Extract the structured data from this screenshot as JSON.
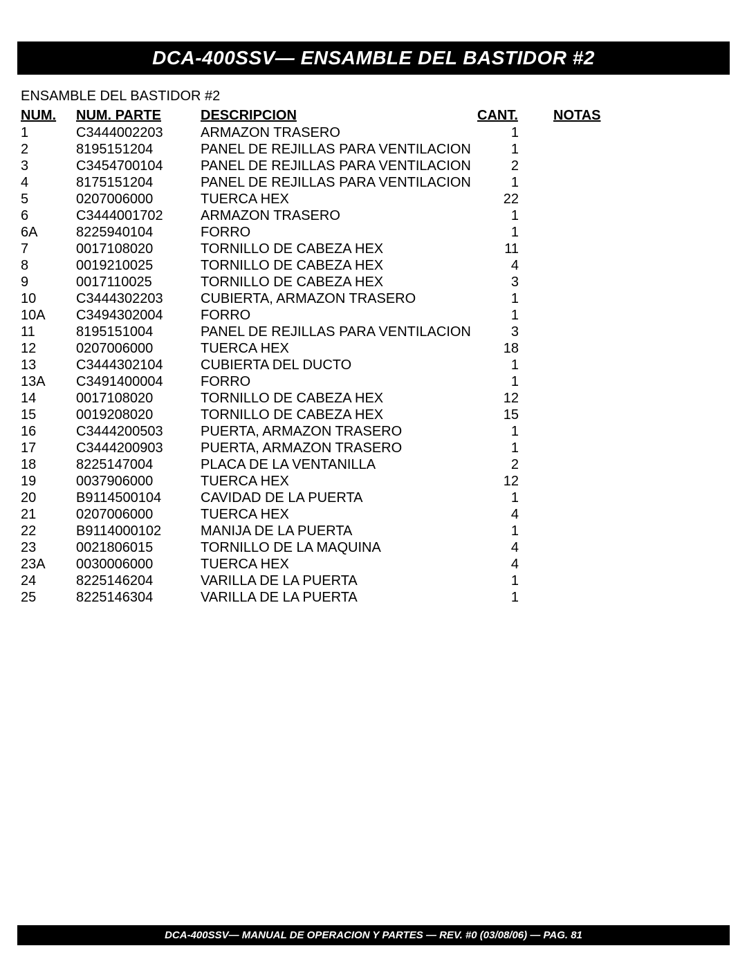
{
  "header": {
    "title": "DCA-400SSV— ENSAMBLE DEL BASTIDOR #2"
  },
  "subtitle": "ENSAMBLE DEL BASTIDOR  #2",
  "table": {
    "columns": {
      "num": "NUM.",
      "parte": "NUM. PARTE",
      "descripcion": "DESCRIPCION",
      "cant": "CANT.",
      "notas": "NOTAS"
    },
    "rows": [
      {
        "num": "1",
        "parte": "C3444002203",
        "desc": "ARMAZON TRASERO",
        "cant": "1",
        "notas": ""
      },
      {
        "num": "2",
        "parte": "8195151204",
        "desc": "PANEL DE REJILLAS PARA VENTILACION",
        "cant": "1",
        "notas": ""
      },
      {
        "num": "3",
        "parte": "C3454700104",
        "desc": "PANEL DE REJILLAS  PARA VENTILACION",
        "cant": "2",
        "notas": ""
      },
      {
        "num": "4",
        "parte": "8175151204",
        "desc": "PANEL DE REJILLAS  PARA VENTILACION",
        "cant": "1",
        "notas": ""
      },
      {
        "num": "5",
        "parte": "0207006000",
        "desc": "TUERCA HEX",
        "cant": "22",
        "notas": ""
      },
      {
        "num": "6",
        "parte": "C3444001702",
        "desc": "ARMAZON TRASERO",
        "cant": "1",
        "notas": ""
      },
      {
        "num": "6A",
        "parte": "8225940104",
        "desc": "FORRO",
        "cant": "1",
        "notas": ""
      },
      {
        "num": "7",
        "parte": "0017108020",
        "desc": "TORNILLO DE CABEZA HEX",
        "cant": "11",
        "notas": ""
      },
      {
        "num": "8",
        "parte": "0019210025",
        "desc": "TORNILLO DE CABEZA HEX",
        "cant": "4",
        "notas": ""
      },
      {
        "num": "9",
        "parte": "0017110025",
        "desc": "TORNILLO DE CABEZA HEX",
        "cant": "3",
        "notas": ""
      },
      {
        "num": "10",
        "parte": "C3444302203",
        "desc": "CUBIERTA, ARMAZON TRASERO",
        "cant": "1",
        "notas": ""
      },
      {
        "num": "10A",
        "parte": "C3494302004",
        "desc": "FORRO",
        "cant": "1",
        "notas": ""
      },
      {
        "num": "11",
        "parte": "8195151004",
        "desc": "PANEL DE REJILLAS  PARA VENTILACION",
        "cant": "3",
        "notas": ""
      },
      {
        "num": "12",
        "parte": "0207006000",
        "desc": "TUERCA HEX",
        "cant": "18",
        "notas": ""
      },
      {
        "num": "13",
        "parte": "C3444302104",
        "desc": "CUBIERTA DEL DUCTO",
        "cant": "1",
        "notas": ""
      },
      {
        "num": "13A",
        "parte": "C3491400004",
        "desc": "FORRO",
        "cant": "1",
        "notas": ""
      },
      {
        "num": "14",
        "parte": "0017108020",
        "desc": "TORNILLO DE CABEZA HEX",
        "cant": "12",
        "notas": ""
      },
      {
        "num": "15",
        "parte": "0019208020",
        "desc": "TORNILLO DE CABEZA HEX",
        "cant": "15",
        "notas": ""
      },
      {
        "num": "16",
        "parte": "C3444200503",
        "desc": "PUERTA, ARMAZON TRASERO",
        "cant": "1",
        "notas": ""
      },
      {
        "num": "17",
        "parte": "C3444200903",
        "desc": "PUERTA, ARMAZON TRASERO",
        "cant": "1",
        "notas": ""
      },
      {
        "num": "18",
        "parte": "8225147004",
        "desc": "PLACA DE LA VENTANILLA",
        "cant": "2",
        "notas": ""
      },
      {
        "num": "19",
        "parte": "0037906000",
        "desc": "TUERCA HEX",
        "cant": "12",
        "notas": ""
      },
      {
        "num": "20",
        "parte": "B9114500104",
        "desc": "CAVIDAD DE LA PUERTA",
        "cant": "1",
        "notas": ""
      },
      {
        "num": "21",
        "parte": "0207006000",
        "desc": "TUERCA HEX",
        "cant": "4",
        "notas": ""
      },
      {
        "num": "22",
        "parte": "B9114000102",
        "desc": "MANIJA DE LA PUERTA",
        "cant": "1",
        "notas": ""
      },
      {
        "num": "23",
        "parte": "0021806015",
        "desc": "TORNILLO DE LA MAQUINA",
        "cant": "4",
        "notas": ""
      },
      {
        "num": "23A",
        "parte": "0030006000",
        "desc": "TUERCA HEX",
        "cant": "4",
        "notas": ""
      },
      {
        "num": "24",
        "parte": "8225146204",
        "desc": "VARILLA DE LA PUERTA",
        "cant": "1",
        "notas": ""
      },
      {
        "num": "25",
        "parte": "8225146304",
        "desc": "VARILLA DE LA PUERTA",
        "cant": "1",
        "notas": ""
      }
    ]
  },
  "footer": {
    "text": "DCA-400SSV— MANUAL DE OPERACION Y PARTES  — REV. #0  (03/08/06) — PAG. 81"
  },
  "styling": {
    "background_color": "#ffffff",
    "header_bg": "#000000",
    "header_color": "#ffffff",
    "footer_bg": "#000000",
    "footer_color": "#ffffff",
    "text_color": "#000000",
    "body_fontsize": 20,
    "header_fontsize": 28,
    "footer_fontsize": 15
  }
}
